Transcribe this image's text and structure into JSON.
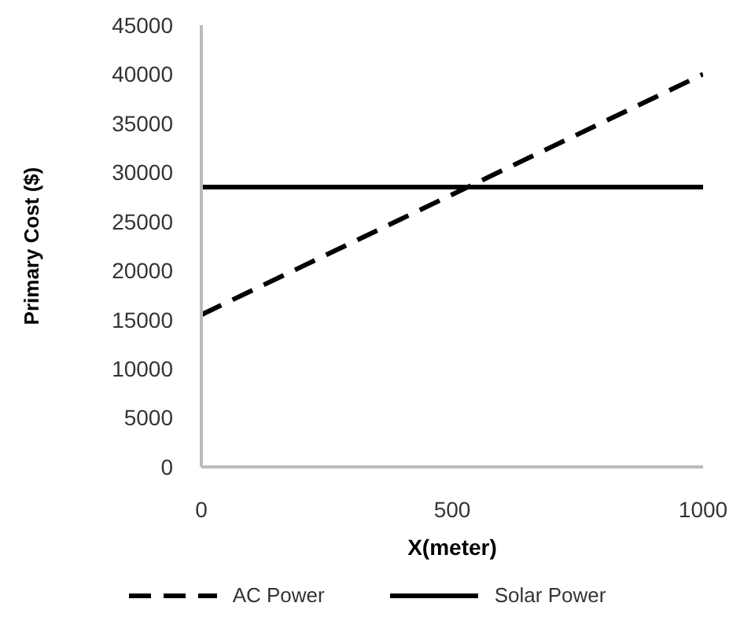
{
  "chart_data": {
    "type": "line",
    "xlabel": "X(meter)",
    "ylabel": "Primary Cost ($)",
    "x": [
      0,
      1000
    ],
    "series": [
      {
        "name": "AC Power",
        "color": "#000000",
        "values": [
          15500,
          40000
        ],
        "line_style": "dashed"
      },
      {
        "name": "Solar Power",
        "color": "#000000",
        "values": [
          28500,
          28500
        ],
        "line_style": "solid"
      }
    ],
    "xlim": [
      0,
      1000
    ],
    "xticks": [
      0,
      500,
      1000
    ],
    "ylim": [
      0,
      45000
    ],
    "yticks": [
      0,
      5000,
      10000,
      15000,
      20000,
      25000,
      30000,
      35000,
      40000,
      45000
    ],
    "grid": false,
    "legend": "bottom",
    "marker": "none"
  }
}
